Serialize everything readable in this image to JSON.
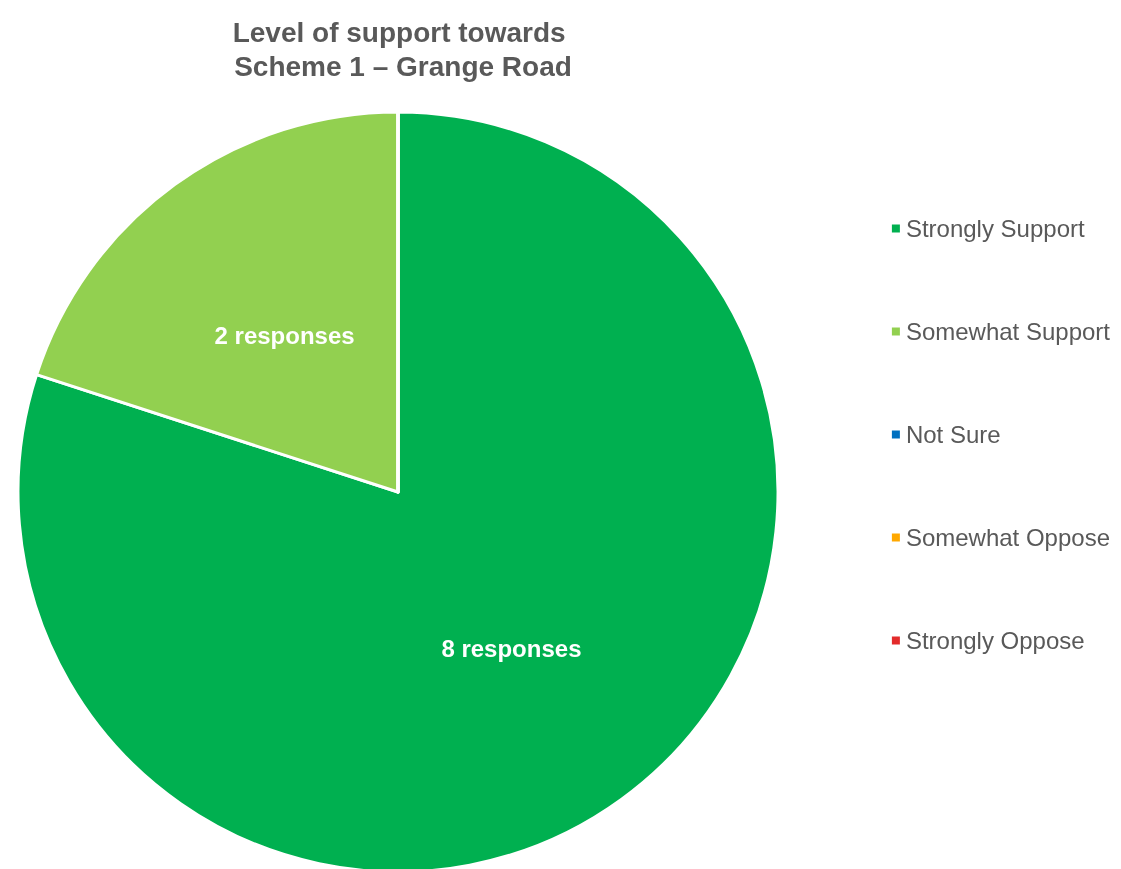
{
  "chart_data": {
    "type": "pie",
    "title": "Level of support towards Scheme 1 – Grange Road",
    "categories": [
      "Strongly Support",
      "Somewhat Support",
      "Not Sure",
      "Somewhat Oppose",
      "Strongly Oppose"
    ],
    "values": [
      8,
      2,
      0,
      0,
      0
    ],
    "colors": [
      "#00b050",
      "#92d050",
      "#0070c0",
      "#ffa800",
      "#e32b2b"
    ],
    "value_labels": [
      "8 responses",
      "2 responses",
      null,
      null,
      null
    ],
    "legend": "right"
  }
}
